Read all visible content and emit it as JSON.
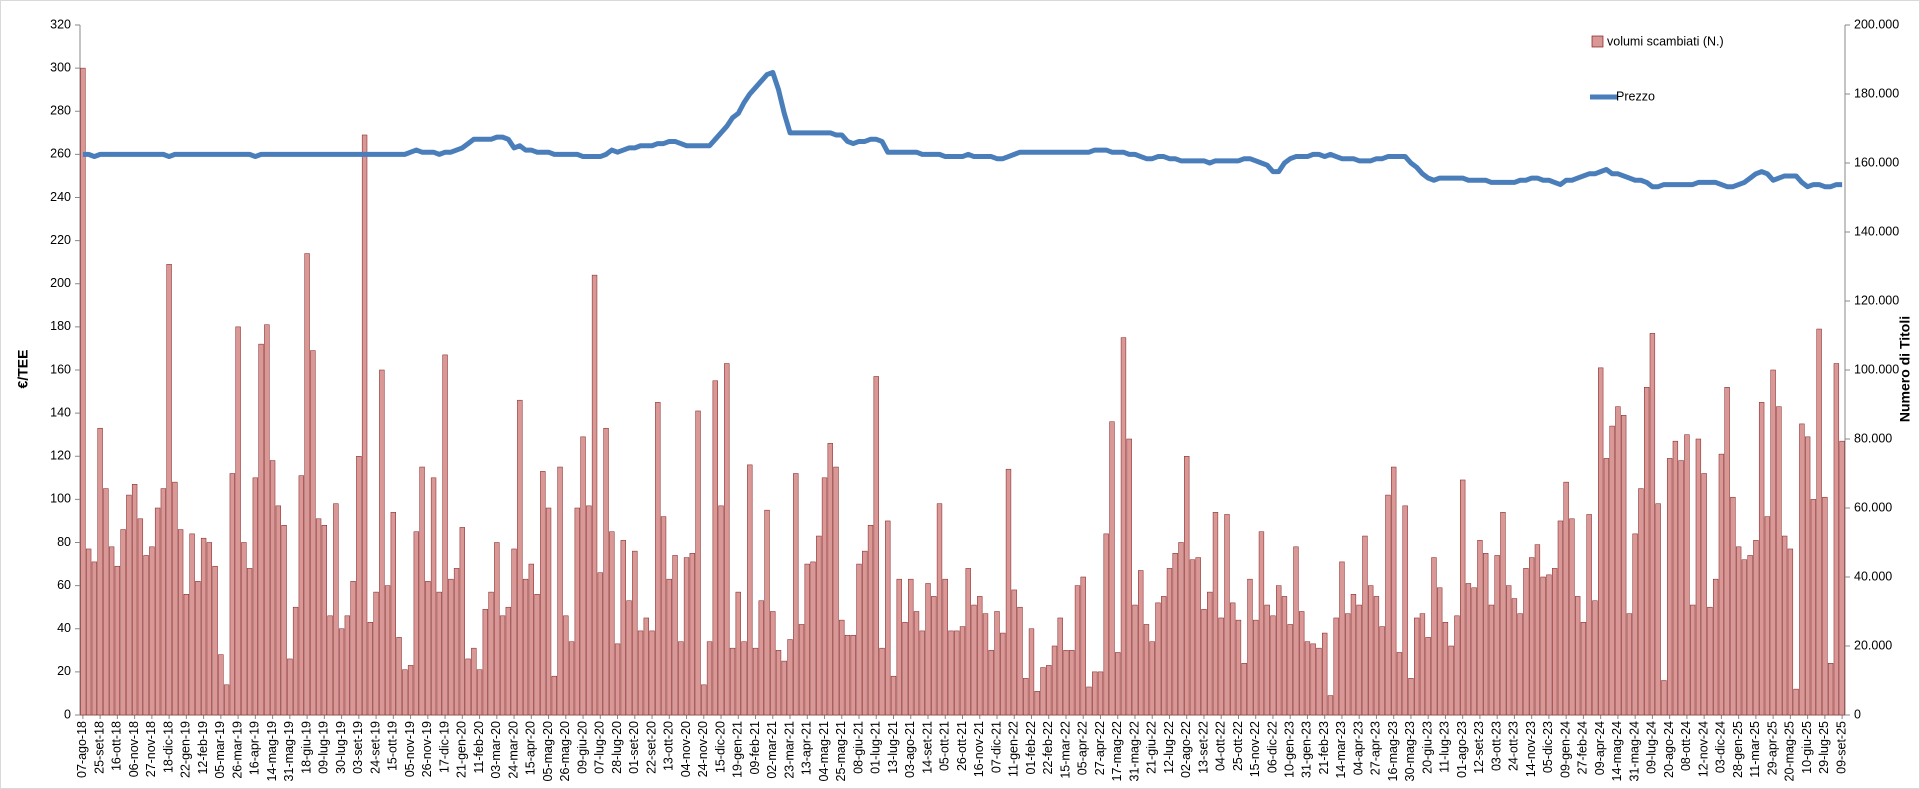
{
  "chart_data": {
    "type": "bar",
    "y_label": "€/TEE",
    "y2_label": "Numero di Titoli",
    "ylim": [
      0,
      320
    ],
    "yticks": [
      0,
      20,
      40,
      60,
      80,
      100,
      120,
      140,
      160,
      180,
      200,
      220,
      240,
      260,
      280,
      300,
      320
    ],
    "y2lim": [
      0,
      200000
    ],
    "y2ticks": [
      0,
      {
        "value": 20000,
        "label": "20.000"
      },
      {
        "value": 40000,
        "label": "40.000"
      },
      {
        "value": 60000,
        "label": "60.000"
      },
      {
        "value": 80000,
        "label": "80.000"
      },
      {
        "value": 100000,
        "label": "100.000"
      },
      {
        "value": 120000,
        "label": "120.000"
      },
      {
        "value": 140000,
        "label": "140.000"
      },
      {
        "value": 160000,
        "label": "160.000"
      },
      {
        "value": 180000,
        "label": "180.000"
      },
      {
        "value": 200000,
        "label": "200.000"
      }
    ],
    "legend": "top-right",
    "categories": [
      "07-ago-18",
      null,
      null,
      "25-set-18",
      null,
      null,
      "16-ott-18",
      null,
      null,
      "06-nov-18",
      null,
      null,
      "27-nov-18",
      null,
      null,
      "18-dic-18",
      null,
      null,
      "22-gen-19",
      null,
      null,
      "12-feb-19",
      null,
      null,
      "05-mar-19",
      null,
      null,
      "26-mar-19",
      null,
      null,
      "16-apr-19",
      null,
      null,
      "14-mag-19",
      null,
      null,
      "31-mag-19",
      null,
      null,
      "18-giu-19",
      null,
      null,
      "09-lug-19",
      null,
      null,
      "30-lug-19",
      null,
      null,
      "03-set-19",
      null,
      null,
      "24-set-19",
      null,
      null,
      "15-ott-19",
      null,
      null,
      "05-nov-19",
      null,
      null,
      "26-nov-19",
      null,
      null,
      "17-dic-19",
      null,
      null,
      "21-gen-20",
      null,
      null,
      "11-feb-20",
      null,
      null,
      "03-mar-20",
      null,
      null,
      "24-mar-20",
      null,
      null,
      "15-apr-20",
      null,
      null,
      "05-mag-20",
      null,
      null,
      "26-mag-20",
      null,
      null,
      "09-giu-20",
      null,
      null,
      "07-lug-20",
      null,
      null,
      "28-lug-20",
      null,
      null,
      "01-set-20",
      null,
      null,
      "22-set-20",
      null,
      null,
      "13-ott-20",
      null,
      null,
      "04-nov-20",
      null,
      null,
      "24-nov-20",
      null,
      null,
      "15-dic-20",
      null,
      null,
      "19-gen-21",
      null,
      null,
      "09-feb-21",
      null,
      null,
      "02-mar-21",
      null,
      null,
      "23-mar-21",
      null,
      null,
      "13-apr-21",
      null,
      null,
      "04-mag-21",
      null,
      null,
      "25-mag-21",
      null,
      null,
      "08-giu-21",
      null,
      null,
      "01-lug-21",
      null,
      null,
      "13-lug-21",
      null,
      null,
      "03-ago-21",
      null,
      null,
      "14-set-21",
      null,
      null,
      "05-ott-21",
      null,
      null,
      "26-ott-21",
      null,
      null,
      "16-nov-21",
      null,
      null,
      "07-dic-21",
      null,
      null,
      "11-gen-22",
      null,
      null,
      "01-feb-22",
      null,
      null,
      "22-feb-22",
      null,
      null,
      "15-mar-22",
      null,
      null,
      "05-apr-22",
      null,
      null,
      "27-apr-22",
      null,
      null,
      "17-mag-22",
      null,
      null,
      "31-mag-22",
      null,
      null,
      "21-giu-22",
      null,
      null,
      "12-lug-22",
      null,
      null,
      "02-ago-22",
      null,
      null,
      "13-set-22",
      null,
      null,
      "04-ott-22",
      null,
      null,
      "25-ott-22",
      null,
      null,
      "15-nov-22",
      null,
      null,
      "06-dic-22",
      null,
      null,
      "10-gen-23",
      null,
      null,
      "31-gen-23",
      null,
      null,
      "21-feb-23",
      null,
      null,
      "14-mar-23",
      null,
      null,
      "04-apr-23",
      null,
      null,
      "27-apr-23",
      null,
      null,
      "16-mag-23",
      null,
      null,
      "30-mag-23",
      null,
      null,
      "20-giu-23",
      null,
      null,
      "11-lug-23",
      null,
      null,
      "01-ago-23",
      null,
      null,
      "12-set-23",
      null,
      null,
      "03-ott-23",
      null,
      null,
      "24-ott-23",
      null,
      null,
      "14-nov-23",
      null,
      null,
      "05-dic-23",
      null,
      null,
      "09-gen-24",
      null,
      null,
      "27-feb-24",
      null,
      null,
      "09-apr-24",
      null,
      null,
      "14-mag-24",
      null,
      null,
      "31-mag-24",
      null,
      null,
      "09-lug-24",
      null,
      null,
      "20-ago-24",
      null,
      null,
      "08-ott-24",
      null,
      null,
      "12-nov-24",
      null,
      null,
      "03-dic-24",
      null,
      null,
      "28-gen-25",
      null,
      null,
      "11-mar-25",
      null,
      null,
      "29-apr-25",
      null,
      null,
      "20-mag-25",
      null,
      null,
      "10-giu-25",
      null,
      null,
      "29-lug-25",
      null,
      null,
      "09-set-25"
    ],
    "series": [
      {
        "name": "volumi scambiati (N.)",
        "type": "bar",
        "axis": "y2",
        "color": "#d99795",
        "edge": "#7f1d1d",
        "values": [
          187500,
          48125,
          44375,
          83125,
          65625,
          48750,
          43125,
          53750,
          63750,
          66875,
          56875,
          46250,
          48750,
          60000,
          65625,
          130625,
          67500,
          53750,
          35000,
          52500,
          38750,
          51250,
          50000,
          43125,
          17500,
          8750,
          70000,
          112500,
          50000,
          42500,
          68750,
          107500,
          113125,
          73750,
          60625,
          55000,
          16250,
          31250,
          69375,
          133750,
          105625,
          56875,
          55000,
          28750,
          61250,
          25000,
          28750,
          38750,
          75000,
          168125,
          26875,
          35625,
          100000,
          37500,
          58750,
          22500,
          13125,
          14375,
          53125,
          71875,
          38750,
          68750,
          35625,
          104375,
          39375,
          42500,
          54375,
          16250,
          19375,
          13125,
          30625,
          35625,
          50000,
          28750,
          31250,
          48125,
          91250,
          39375,
          43750,
          35000,
          70625,
          60000,
          11250,
          71875,
          28750,
          21250,
          60000,
          80625,
          60625,
          127500,
          41250,
          83125,
          53125,
          20625,
          50625,
          33125,
          47500,
          24375,
          28125,
          24375,
          90625,
          57500,
          39375,
          46250,
          21250,
          45625,
          46875,
          88125,
          8750,
          21250,
          96875,
          60625,
          101875,
          19375,
          35625,
          21250,
          72500,
          19375,
          33125,
          59375,
          30000,
          18750,
          15625,
          21875,
          70000,
          26250,
          43750,
          44375,
          51875,
          68750,
          78750,
          71875,
          27500,
          23125,
          23125,
          43750,
          47500,
          55000,
          98125,
          19375,
          56250,
          11250,
          39375,
          26875,
          39375,
          30000,
          24375,
          38125,
          34375,
          61250,
          39375,
          24375,
          24375,
          25625,
          42500,
          31875,
          34375,
          29375,
          18750,
          30000,
          23750,
          71250,
          36250,
          31250,
          10625,
          25000,
          6875,
          13750,
          14375,
          20000,
          28125,
          18750,
          18750,
          37500,
          40000,
          8125,
          12500,
          12500,
          52500,
          85000,
          18125,
          109375,
          80000,
          31875,
          41875,
          26250,
          21250,
          32500,
          34375,
          42500,
          46875,
          50000,
          75000,
          45000,
          45625,
          30625,
          35625,
          58750,
          28125,
          58125,
          32500,
          27500,
          15000,
          39375,
          27500,
          53125,
          31875,
          28750,
          37500,
          34375,
          26250,
          48750,
          30000,
          21250,
          20625,
          19375,
          23750,
          5625,
          28125,
          44375,
          29375,
          35000,
          31875,
          51875,
          37500,
          34375,
          25625,
          63750,
          71875,
          18125,
          60625,
          10625,
          28125,
          29375,
          22500,
          45625,
          36875,
          26875,
          20000,
          28750,
          68125,
          38125,
          36875,
          50625,
          46875,
          31875,
          46250,
          58750,
          37500,
          33750,
          29375,
          42500,
          45625,
          49375,
          40000,
          40625,
          42500,
          56250,
          67500,
          56875,
          34375,
          26875,
          58125,
          33125,
          100625,
          74375,
          83750,
          89375,
          86875,
          29375,
          52500,
          65625,
          95000,
          110625,
          61250,
          10000,
          74375,
          79375,
          73750,
          81250,
          31875,
          80000,
          70000,
          31250,
          39375,
          75625,
          95000,
          63125,
          48750,
          45000,
          46250,
          50625,
          90625,
          57500,
          100000,
          89375,
          51875,
          48125,
          7500,
          84375,
          80625,
          62500,
          111875,
          63125,
          15000,
          101875,
          79375
        ]
      },
      {
        "name": "Prezzo",
        "type": "line",
        "color": "#4a7ebb",
        "values": [
          260,
          260,
          259,
          260,
          260,
          260,
          260,
          260,
          260,
          260,
          260,
          260,
          260,
          260,
          260,
          259,
          260,
          260,
          260,
          260,
          260,
          260,
          260,
          260,
          260,
          260,
          260,
          260,
          260,
          260,
          259,
          260,
          260,
          260,
          260,
          260,
          260,
          260,
          260,
          260,
          260,
          260,
          260,
          260,
          260,
          260,
          260,
          260,
          260,
          260,
          260,
          260,
          260,
          260,
          260,
          260,
          260,
          261,
          262,
          261,
          261,
          261,
          260,
          261,
          261,
          262,
          263,
          265,
          267,
          267,
          267,
          267,
          268,
          268,
          267,
          263,
          264,
          262,
          262,
          261,
          261,
          261,
          260,
          260,
          260,
          260,
          260,
          259,
          259,
          259,
          259,
          260,
          262,
          261,
          262,
          263,
          263,
          264,
          264,
          264,
          265,
          265,
          266,
          266,
          265,
          264,
          264,
          264,
          264,
          264,
          267,
          270,
          273,
          277,
          279,
          284,
          288,
          291,
          294,
          297,
          298,
          290,
          279,
          270,
          270,
          270,
          270,
          270,
          270,
          270,
          270,
          269,
          269,
          266,
          265,
          266,
          266,
          267,
          267,
          266,
          261,
          261,
          261,
          261,
          261,
          261,
          260,
          260,
          260,
          260,
          259,
          259,
          259,
          259,
          260,
          259,
          259,
          259,
          259,
          258,
          258,
          259,
          260,
          261,
          261,
          261,
          261,
          261,
          261,
          261,
          261,
          261,
          261,
          261,
          261,
          261,
          262,
          262,
          262,
          261,
          261,
          261,
          260,
          260,
          259,
          258,
          258,
          259,
          259,
          258,
          258,
          257,
          257,
          257,
          257,
          257,
          256,
          257,
          257,
          257,
          257,
          257,
          258,
          258,
          257,
          256,
          255,
          252,
          252,
          256,
          258,
          259,
          259,
          259,
          260,
          260,
          259,
          260,
          259,
          258,
          258,
          258,
          257,
          257,
          257,
          258,
          258,
          259,
          259,
          259,
          259,
          256,
          254,
          251,
          249,
          248,
          249,
          249,
          249,
          249,
          249,
          248,
          248,
          248,
          248,
          247,
          247,
          247,
          247,
          247,
          248,
          248,
          249,
          249,
          248,
          248,
          247,
          246,
          248,
          248,
          249,
          250,
          251,
          251,
          252,
          253,
          251,
          251,
          250,
          249,
          248,
          248,
          247,
          245,
          245,
          246,
          246,
          246,
          246,
          246,
          246,
          247,
          247,
          247,
          247,
          246,
          245,
          245,
          246,
          247,
          249,
          251,
          252,
          251,
          248,
          249,
          250,
          250,
          250,
          247,
          245,
          246,
          246,
          245,
          245,
          246,
          246
        ]
      }
    ]
  }
}
